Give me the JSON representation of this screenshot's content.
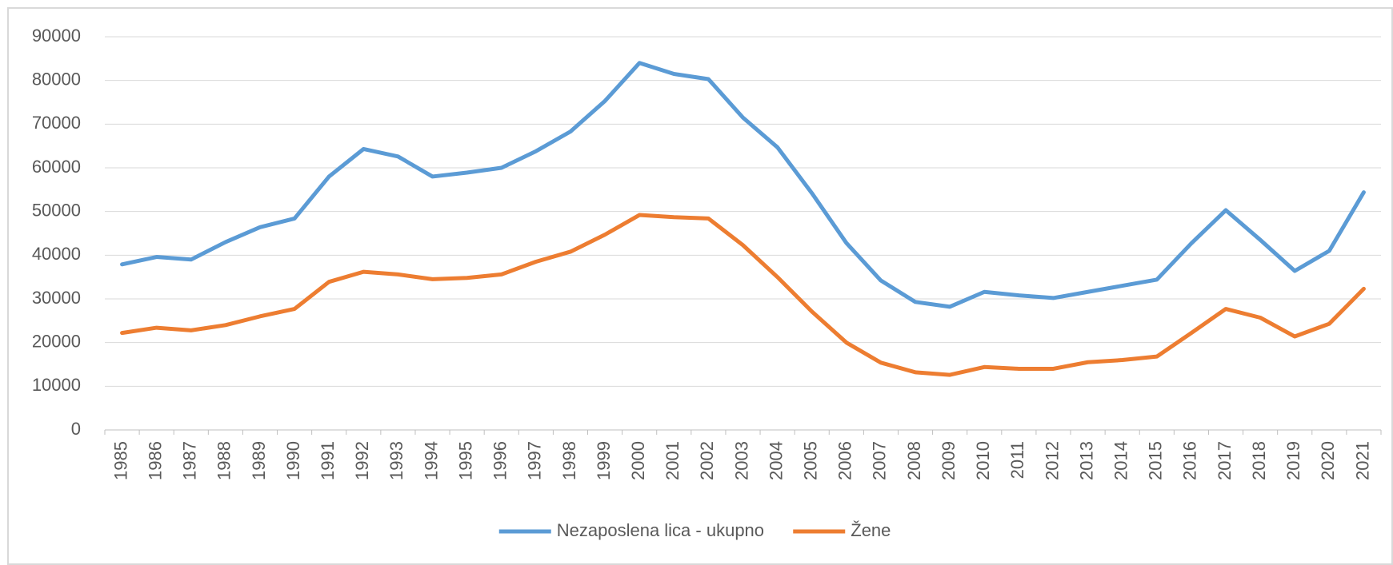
{
  "chart_data": {
    "type": "line",
    "categories": [
      "1985",
      "1986",
      "1987",
      "1988",
      "1989",
      "1990",
      "1991",
      "1992",
      "1993",
      "1994",
      "1995",
      "1996",
      "1997",
      "1998",
      "1999",
      "2000",
      "2001",
      "2002",
      "2003",
      "2004",
      "2005",
      "2006",
      "2007",
      "2008",
      "2009",
      "2010",
      "2011",
      "2012",
      "2013",
      "2014",
      "2015",
      "2016",
      "2017",
      "2018",
      "2019",
      "2020",
      "2021"
    ],
    "series": [
      {
        "name": "Nezaposlena lica - ukupno",
        "color": "#5b9bd5",
        "values": [
          37900,
          39600,
          39000,
          43000,
          46400,
          48400,
          58000,
          64300,
          62600,
          58000,
          58900,
          60000,
          63800,
          68300,
          75300,
          84000,
          81500,
          80300,
          71500,
          64700,
          54200,
          42800,
          34200,
          29300,
          28200,
          31600,
          30800,
          30200,
          31600,
          33000,
          34400,
          42700,
          50300,
          43500,
          36400,
          41000,
          54400
        ]
      },
      {
        "name": "Žene",
        "color": "#ed7d31",
        "values": [
          22200,
          23400,
          22800,
          24000,
          26000,
          27700,
          33900,
          36200,
          35600,
          34500,
          34800,
          35600,
          38500,
          40800,
          44700,
          49200,
          48700,
          48400,
          42300,
          35000,
          27100,
          20000,
          15400,
          13200,
          12600,
          14400,
          14000,
          14000,
          15500,
          16000,
          16800,
          22200,
          27700,
          25700,
          21400,
          24300,
          32300
        ]
      }
    ],
    "ylim": [
      0,
      90000
    ],
    "yticks": [
      0,
      10000,
      20000,
      30000,
      40000,
      50000,
      60000,
      70000,
      80000,
      90000
    ],
    "grid": true,
    "legend": "bottom"
  }
}
